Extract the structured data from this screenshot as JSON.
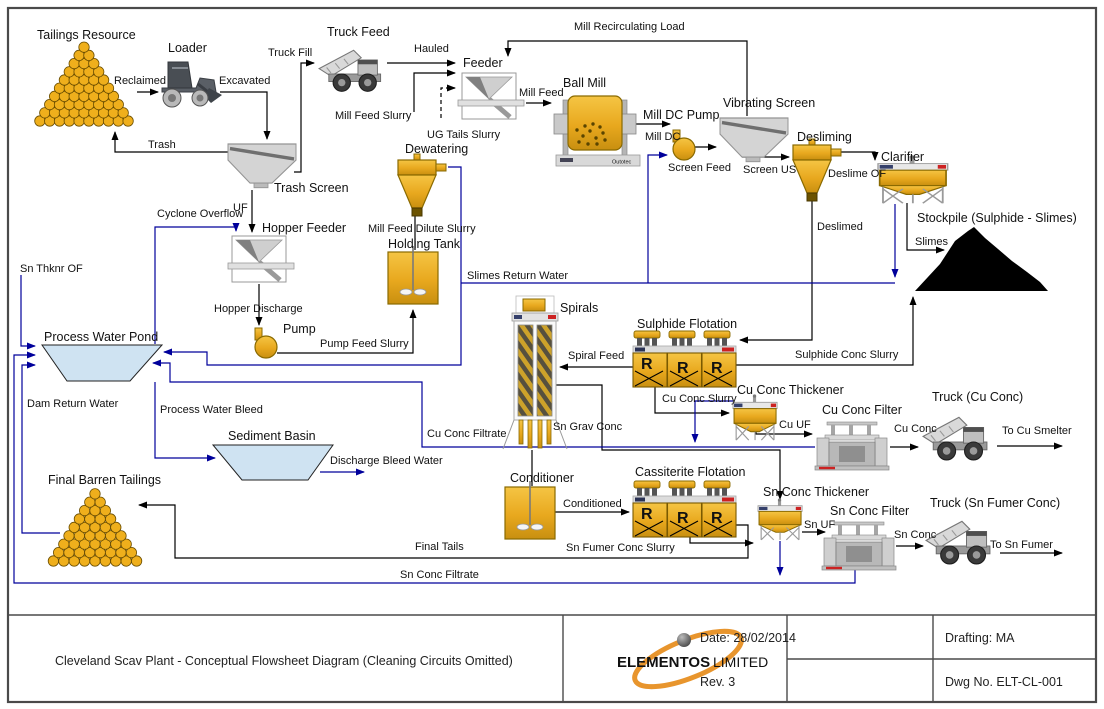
{
  "title_block": {
    "title": "Cleveland Scav Plant - Conceptual Flowsheet Diagram (Cleaning Circuits Omitted)",
    "company_name": "ELEMENTOS",
    "company_suffix": "LIMITED",
    "date": "Date: 28/02/2014",
    "drafting": "Drafting: MA",
    "rev": "Rev. 3",
    "dwg_no": "Dwg No. ELT-CL-001"
  },
  "branding": {
    "outotec": "Outotec",
    "cell_letter": "R"
  },
  "colors": {
    "equipment_gold": "#E8A81E",
    "water_line": "#00009B",
    "solids_line": "#000000",
    "pond_fill": "#CFE3F2",
    "stockpile": "#000000",
    "logo_orange": "#E8952D",
    "brand_red": "#CC2222"
  },
  "equipment": {
    "tailings_resource": "Tailings Resource",
    "loader": "Loader",
    "truck_feed": "Truck Feed",
    "trash_screen": "Trash Screen",
    "feeder": "Feeder",
    "ball_mill": "Ball Mill",
    "mill_dc_pump": "Mill DC Pump",
    "vibrating_screen": "Vibrating Screen",
    "desliming": "Desliming",
    "clarifier": "Clarifier",
    "stockpile": "Stockpile (Sulphide - Slimes)",
    "dewatering": "Dewatering",
    "holding_tank": "Holding Tank",
    "hopper_feeder": "Hopper Feeder",
    "pump": "Pump",
    "process_water_pond": "Process Water Pond",
    "sediment_basin": "Sediment Basin",
    "final_barren_tailings": "Final Barren Tailings",
    "spirals": "Spirals",
    "sulphide_flotation": "Sulphide Flotation",
    "cu_conc_thickener": "Cu Conc Thickener",
    "cu_conc_filter": "Cu Conc Filter",
    "truck_cu": "Truck (Cu Conc)",
    "conditioner": "Conditioner",
    "cassiterite_flotation": "Cassiterite Flotation",
    "sn_conc_thickener": "Sn Conc Thickener",
    "sn_conc_filter": "Sn Conc Filter",
    "truck_sn": "Truck (Sn Fumer Conc)"
  },
  "streams": {
    "reclaimed": "Reclaimed",
    "excavated": "Excavated",
    "trash": "Trash",
    "truck_fill": "Truck Fill",
    "hauled": "Hauled",
    "mill_feed_slurry": "Mill Feed Slurry",
    "ug_tails_slurry": "UG Tails Slurry",
    "mill_recirculating_load": "Mill Recirculating Load",
    "mill_feed": "Mill Feed",
    "mill_dc": "Mill DC",
    "screen_feed": "Screen Feed",
    "screen_us": "Screen US",
    "deslime_of": "Deslime OF",
    "deslimed": "Deslimed",
    "slimes": "Slimes",
    "cyclone_overflow": "Cyclone Overflow",
    "uf": "UF",
    "hopper_discharge": "Hopper Discharge",
    "pump_feed_slurry": "Pump Feed Slurry",
    "mill_feed_dilute_slurry": "Mill Feed Dilute Slurry",
    "slimes_return_water": "Slimes Return Water",
    "sn_thknr_of": "Sn Thknr OF",
    "dam_return_water": "Dam Return Water",
    "process_water_bleed": "Process Water Bleed",
    "discharge_bleed_water": "Discharge Bleed Water",
    "spiral_feed": "Spiral Feed",
    "sn_grav_conc": "Sn Grav Conc",
    "sulphide_conc_slurry": "Sulphide Conc Slurry",
    "cu_conc_slurry": "Cu Conc Slurry",
    "cu_uf": "Cu UF",
    "cu_conc": "Cu Conc",
    "to_cu_smelter": "To Cu Smelter",
    "cu_conc_filtrate": "Cu Conc Filtrate",
    "conditioned": "Conditioned",
    "sn_fumer_conc_slurry": "Sn Fumer Conc Slurry",
    "final_tails": "Final Tails",
    "sn_conc_filtrate": "Sn Conc Filtrate",
    "sn_uf": "Sn UF",
    "sn_conc": "Sn Conc",
    "to_sn_fumer": "To Sn Fumer"
  }
}
